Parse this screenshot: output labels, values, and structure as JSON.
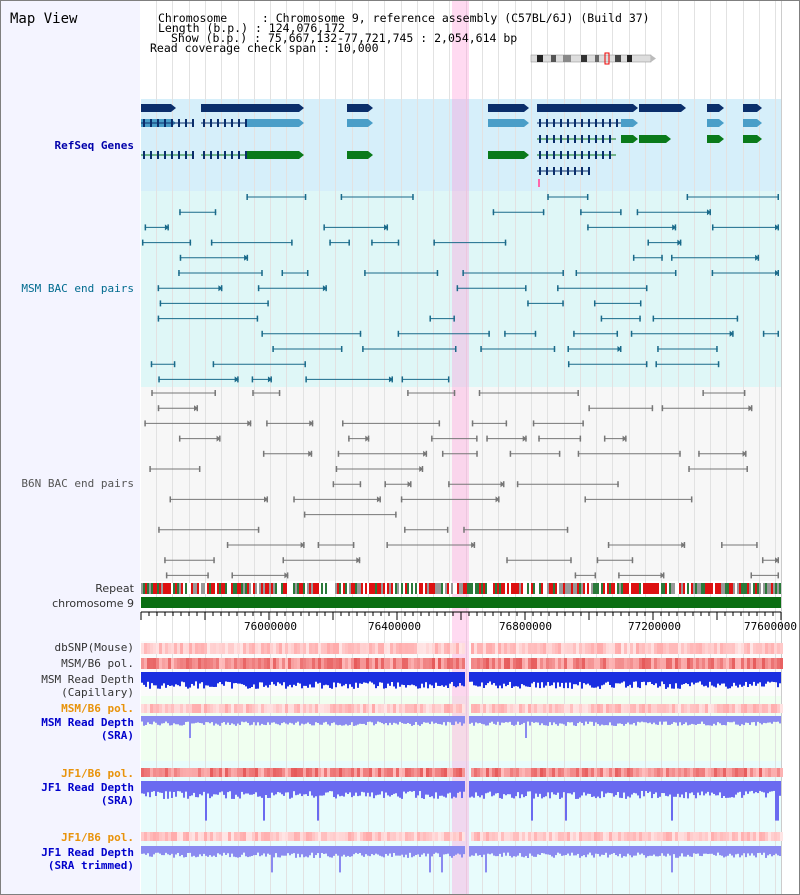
{
  "title": "Map View",
  "header": {
    "chromosome_label": "Chromosome",
    "chromosome_value": "Chromosome 9, reference assembly (C57BL/6J) (Build 37)",
    "length_label": "Length (b.p.)",
    "length_value": "124,076,172",
    "show_label": "Show (b.p.)",
    "show_value": "75,667,132-77,721,745 : 2,054,614 bp",
    "coverage_label": "Read coverage check span",
    "coverage_value": "10,000"
  },
  "tracks": {
    "refseq": "RefSeq Genes",
    "msm_bac": "MSM BAC end pairs",
    "b6n_bac": "B6N BAC end pairs",
    "repeat": "Repeat",
    "chromosome": "chromosome 9",
    "dbsnp": "dbSNP(Mouse)",
    "msm_b6_pol": "MSM/B6 pol.",
    "msm_depth_cap_1": "MSM Read Depth",
    "msm_depth_cap_2": "(Capillary)",
    "msm_b6_pol_2": "MSM/B6 pol.",
    "msm_depth_sra_1": "MSM Read Depth",
    "msm_depth_sra_2": "(SRA)",
    "jf1_b6_pol": "JF1/B6 pol.",
    "jf1_depth_sra_1": "JF1 Read Depth",
    "jf1_depth_sra_2": "(SRA)",
    "jf1_b6_pol_2": "JF1/B6 pol.",
    "jf1_depth_trim_1": "JF1 Read Depth",
    "jf1_depth_trim_2": "(SRA trimmed)"
  },
  "axis": {
    "ticks": [
      "76000000",
      "76400000",
      "76800000",
      "77200000",
      "77600000"
    ]
  },
  "colors": {
    "refseq_bg": "#d6effa",
    "msm_bg": "#dff7f7",
    "gene_dark": "#0a2e6b",
    "gene_light": "#4a9ec8",
    "gene_green": "#0a7a1a",
    "bac_msm": "#1a6a8a",
    "bac_b6n": "#777777",
    "highlight": "#ff96d7"
  }
}
